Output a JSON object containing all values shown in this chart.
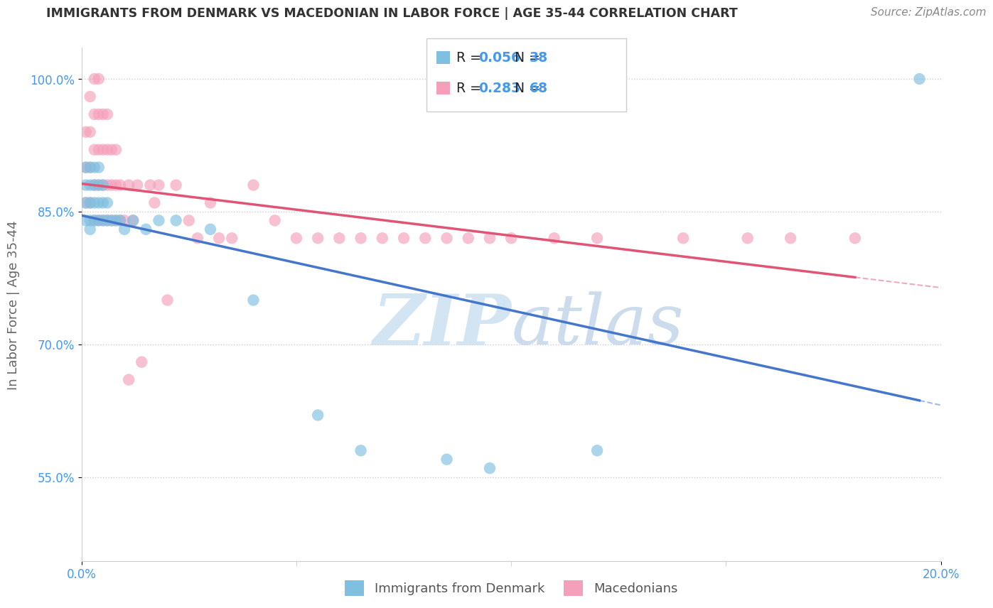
{
  "title": "IMMIGRANTS FROM DENMARK VS MACEDONIAN IN LABOR FORCE | AGE 35-44 CORRELATION CHART",
  "source": "Source: ZipAtlas.com",
  "ylabel": "In Labor Force | Age 35-44",
  "yticks": [
    1.0,
    0.85,
    0.7,
    0.55
  ],
  "ytick_labels": [
    "100.0%",
    "85.0%",
    "70.0%",
    "55.0%"
  ],
  "xlim": [
    0.0,
    0.2
  ],
  "ylim": [
    0.455,
    1.035
  ],
  "denmark_R": 0.056,
  "denmark_N": 38,
  "macedonian_R": 0.283,
  "macedonian_N": 68,
  "denmark_color": "#7fbfdf",
  "macedonian_color": "#f5a0bb",
  "denmark_line_color": "#4477cc",
  "macedonian_line_color": "#e05575",
  "denmark_x": [
    0.001,
    0.001,
    0.001,
    0.001,
    0.002,
    0.002,
    0.002,
    0.002,
    0.002,
    0.003,
    0.003,
    0.003,
    0.003,
    0.004,
    0.004,
    0.004,
    0.004,
    0.005,
    0.005,
    0.005,
    0.006,
    0.006,
    0.007,
    0.008,
    0.009,
    0.01,
    0.012,
    0.015,
    0.018,
    0.022,
    0.03,
    0.04,
    0.055,
    0.065,
    0.085,
    0.095,
    0.12,
    0.195
  ],
  "denmark_y": [
    0.84,
    0.86,
    0.88,
    0.9,
    0.84,
    0.86,
    0.88,
    0.9,
    0.83,
    0.84,
    0.86,
    0.88,
    0.9,
    0.84,
    0.86,
    0.88,
    0.9,
    0.84,
    0.86,
    0.88,
    0.84,
    0.86,
    0.84,
    0.84,
    0.84,
    0.83,
    0.84,
    0.83,
    0.84,
    0.84,
    0.83,
    0.75,
    0.62,
    0.58,
    0.57,
    0.56,
    0.58,
    1.0
  ],
  "macedonian_x": [
    0.001,
    0.001,
    0.001,
    0.002,
    0.002,
    0.002,
    0.002,
    0.003,
    0.003,
    0.003,
    0.003,
    0.003,
    0.004,
    0.004,
    0.004,
    0.004,
    0.004,
    0.005,
    0.005,
    0.005,
    0.005,
    0.006,
    0.006,
    0.006,
    0.006,
    0.007,
    0.007,
    0.007,
    0.008,
    0.008,
    0.008,
    0.009,
    0.009,
    0.01,
    0.011,
    0.011,
    0.012,
    0.013,
    0.014,
    0.016,
    0.017,
    0.018,
    0.02,
    0.022,
    0.025,
    0.027,
    0.03,
    0.032,
    0.035,
    0.04,
    0.045,
    0.05,
    0.055,
    0.06,
    0.065,
    0.07,
    0.075,
    0.08,
    0.085,
    0.09,
    0.095,
    0.1,
    0.11,
    0.12,
    0.14,
    0.155,
    0.165,
    0.18
  ],
  "macedonian_y": [
    0.86,
    0.9,
    0.94,
    0.86,
    0.9,
    0.94,
    0.98,
    0.84,
    0.88,
    0.92,
    0.96,
    1.0,
    0.84,
    0.88,
    0.92,
    0.96,
    1.0,
    0.84,
    0.88,
    0.92,
    0.96,
    0.84,
    0.88,
    0.92,
    0.96,
    0.84,
    0.88,
    0.92,
    0.84,
    0.88,
    0.92,
    0.84,
    0.88,
    0.84,
    0.66,
    0.88,
    0.84,
    0.88,
    0.68,
    0.88,
    0.86,
    0.88,
    0.75,
    0.88,
    0.84,
    0.82,
    0.86,
    0.82,
    0.82,
    0.88,
    0.84,
    0.82,
    0.82,
    0.82,
    0.82,
    0.82,
    0.82,
    0.82,
    0.82,
    0.82,
    0.82,
    0.82,
    0.82,
    0.82,
    0.82,
    0.82,
    0.82,
    0.82
  ],
  "watermark_left": "ZIP",
  "watermark_right": "atlas",
  "background_color": "#ffffff",
  "grid_color": "#cccccc",
  "tick_color": "#4499ee",
  "title_color": "#333333",
  "ylabel_color": "#666666",
  "legend_border_color": "#cccccc",
  "bottom_legend_color": "#555555"
}
